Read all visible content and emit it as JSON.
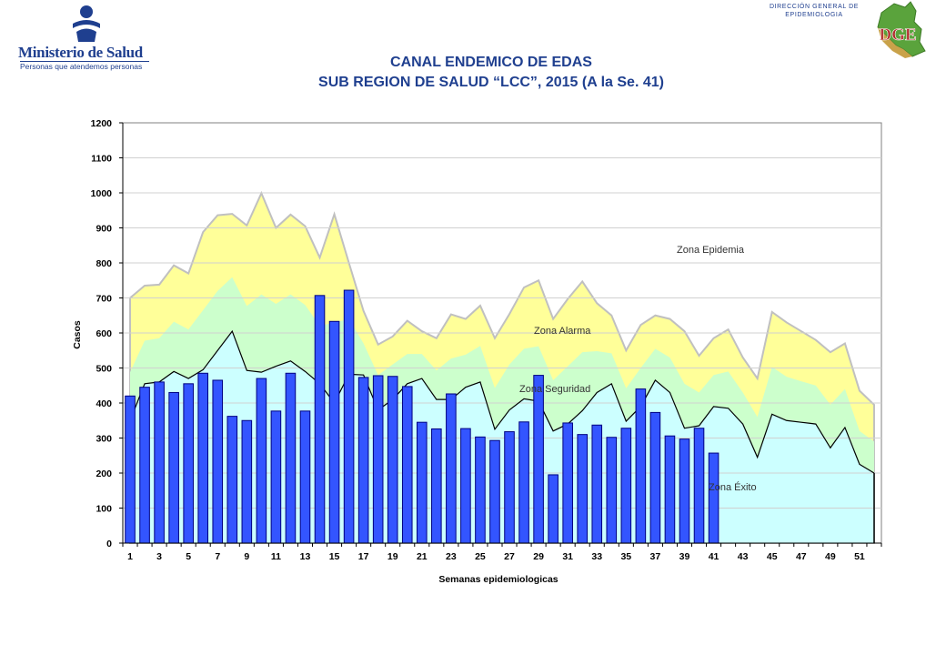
{
  "header": {
    "logo_name": "Ministerio de Salud",
    "logo_subtitle": "Personas que atendemos personas",
    "dge_line1": "DIRECCIÓN GENERAL DE",
    "dge_line2": "EPIDEMIOLOGIA",
    "dge_logo_text": "DGE"
  },
  "chart_data": {
    "type": "area",
    "title_line1": "CANAL ENDEMICO DE EDAS",
    "title_line2": "SUB REGION DE SALUD “LCC”, 2015 (A la Se. 41)",
    "xlabel": "Semanas epidemiologicas",
    "ylabel": "Casos",
    "ylim": [
      0,
      1200
    ],
    "yticks": [
      0,
      100,
      200,
      300,
      400,
      500,
      600,
      700,
      800,
      900,
      1000,
      1100,
      1200
    ],
    "xtick_labels": [
      "1",
      "3",
      "5",
      "7",
      "9",
      "11",
      "13",
      "15",
      "17",
      "19",
      "21",
      "23",
      "25",
      "27",
      "29",
      "31",
      "33",
      "35",
      "37",
      "39",
      "41",
      "43",
      "45",
      "47",
      "49",
      "51"
    ],
    "weeks": 52,
    "zone_labels": {
      "epidemia": "Zona Epidemia",
      "alarma": "Zona Alarma",
      "seguridad": "Zona Seguridad",
      "exito": "Zona Éxito"
    },
    "colors": {
      "epidemia": "#ffffff",
      "alarma": "#ffff99",
      "seguridad": "#ccffcc",
      "exito": "#ccffff",
      "bars": "#3355ff",
      "bar_edge": "#000080",
      "alarma_edge": "#c0c0c0"
    },
    "series": [
      {
        "name": "Alarma (limite superior)",
        "values": [
          700,
          735,
          738,
          793,
          770,
          888,
          936,
          940,
          907,
          999,
          900,
          938,
          905,
          815,
          939,
          800,
          663,
          567,
          590,
          635,
          605,
          585,
          653,
          640,
          678,
          585,
          654,
          730,
          750,
          640,
          697,
          747,
          685,
          650,
          550,
          623,
          650,
          640,
          605,
          535,
          585,
          610,
          530,
          470,
          660,
          630,
          605,
          580,
          545,
          570,
          435,
          395
        ]
      },
      {
        "name": "Seguridad (limite superior)",
        "values": [
          488,
          578,
          585,
          632,
          610,
          665,
          720,
          759,
          677,
          710,
          683,
          710,
          680,
          620,
          630,
          640,
          570,
          480,
          510,
          540,
          540,
          493,
          527,
          538,
          563,
          443,
          510,
          555,
          562,
          465,
          505,
          545,
          548,
          542,
          442,
          500,
          555,
          530,
          455,
          430,
          480,
          490,
          430,
          360,
          503,
          475,
          462,
          450,
          395,
          440,
          320,
          290
        ]
      },
      {
        "name": "Exito (limite superior)",
        "values": [
          350,
          455,
          460,
          490,
          470,
          495,
          550,
          605,
          493,
          488,
          505,
          520,
          490,
          455,
          400,
          482,
          480,
          380,
          410,
          455,
          470,
          410,
          410,
          445,
          460,
          325,
          380,
          412,
          405,
          320,
          340,
          378,
          430,
          455,
          348,
          390,
          465,
          430,
          328,
          335,
          390,
          385,
          340,
          245,
          368,
          350,
          345,
          340,
          272,
          330,
          225,
          200
        ]
      },
      {
        "name": "Casos 2015",
        "values": [
          420,
          445,
          460,
          430,
          455,
          485,
          465,
          362,
          350,
          470,
          377,
          485,
          377,
          707,
          633,
          722,
          473,
          478,
          476,
          447,
          345,
          326,
          426,
          327,
          303,
          293,
          318,
          346,
          479,
          195,
          343,
          310,
          337,
          302,
          328,
          440,
          373,
          306,
          297,
          328,
          257
        ]
      }
    ]
  }
}
